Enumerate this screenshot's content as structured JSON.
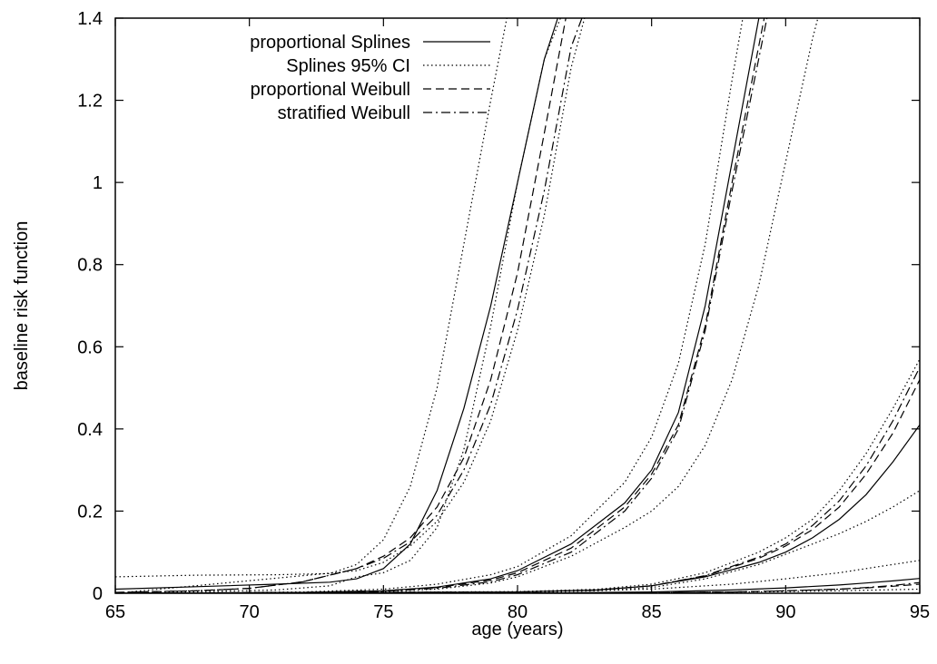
{
  "chart_data": {
    "type": "line",
    "title": "",
    "xlabel": "age (years)",
    "ylabel": "baseline risk function",
    "xlim": [
      65,
      95
    ],
    "ylim": [
      0,
      1.4
    ],
    "xticks": [
      "65",
      "70",
      "75",
      "80",
      "85",
      "90",
      "95"
    ],
    "yticks": [
      "0",
      "0.2",
      "0.4",
      "0.6",
      "0.8",
      "1",
      "1.2",
      "1.4"
    ],
    "grid": false,
    "legend_position": "top-left",
    "legend": [
      {
        "label": "proportional Splines",
        "style": "solid"
      },
      {
        "label": "Splines 95% CI",
        "style": "dotted"
      },
      {
        "label": "proportional Weibull",
        "style": "dashed"
      },
      {
        "label": "stratified Weibull",
        "style": "dashdot"
      }
    ],
    "series": [
      {
        "group": "A",
        "style": "solid",
        "points": [
          [
            65,
            0.01
          ],
          [
            68,
            0.016
          ],
          [
            71,
            0.022
          ],
          [
            73,
            0.027
          ],
          [
            74,
            0.035
          ],
          [
            75,
            0.06
          ],
          [
            76,
            0.12
          ],
          [
            77,
            0.25
          ],
          [
            78,
            0.45
          ],
          [
            79,
            0.7
          ],
          [
            80,
            1.0
          ],
          [
            81,
            1.3
          ],
          [
            81.5,
            1.4
          ]
        ]
      },
      {
        "group": "A",
        "style": "dotted",
        "points": [
          [
            65,
            0.04
          ],
          [
            68,
            0.044
          ],
          [
            71,
            0.045
          ],
          [
            73,
            0.048
          ],
          [
            74,
            0.07
          ],
          [
            75,
            0.13
          ],
          [
            76,
            0.26
          ],
          [
            77,
            0.5
          ],
          [
            78,
            0.85
          ],
          [
            79,
            1.2
          ],
          [
            79.6,
            1.4
          ]
        ]
      },
      {
        "group": "A",
        "style": "dotted",
        "points": [
          [
            65,
            0.0
          ],
          [
            68,
            0.004
          ],
          [
            71,
            0.008
          ],
          [
            73,
            0.018
          ],
          [
            74,
            0.04
          ],
          [
            75,
            0.05
          ],
          [
            76,
            0.08
          ],
          [
            77,
            0.16
          ],
          [
            78,
            0.35
          ],
          [
            79,
            0.65
          ],
          [
            80,
            1.0
          ],
          [
            81,
            1.3
          ],
          [
            81.6,
            1.4
          ]
        ]
      },
      {
        "group": "A",
        "style": "dashed",
        "points": [
          [
            65,
            0.002
          ],
          [
            68,
            0.006
          ],
          [
            70,
            0.012
          ],
          [
            72,
            0.028
          ],
          [
            74,
            0.06
          ],
          [
            75,
            0.09
          ],
          [
            76,
            0.135
          ],
          [
            77,
            0.21
          ],
          [
            78,
            0.33
          ],
          [
            79,
            0.52
          ],
          [
            80,
            0.78
          ],
          [
            81,
            1.12
          ],
          [
            81.8,
            1.4
          ]
        ]
      },
      {
        "group": "A",
        "style": "dashdot",
        "points": [
          [
            65,
            0.002
          ],
          [
            68,
            0.006
          ],
          [
            70,
            0.012
          ],
          [
            72,
            0.028
          ],
          [
            74,
            0.06
          ],
          [
            75,
            0.085
          ],
          [
            76,
            0.125
          ],
          [
            77,
            0.19
          ],
          [
            78,
            0.3
          ],
          [
            79,
            0.46
          ],
          [
            80,
            0.69
          ],
          [
            81,
            0.98
          ],
          [
            82,
            1.33
          ],
          [
            82.4,
            1.4
          ]
        ]
      },
      {
        "group": "A",
        "style": "dotted",
        "points": [
          [
            65,
            0.0
          ],
          [
            74,
            0.055
          ],
          [
            75,
            0.075
          ],
          [
            76,
            0.115
          ],
          [
            77,
            0.175
          ],
          [
            78,
            0.27
          ],
          [
            79,
            0.42
          ],
          [
            80,
            0.64
          ],
          [
            81,
            0.92
          ],
          [
            82,
            1.28
          ],
          [
            82.5,
            1.4
          ]
        ]
      },
      {
        "group": "B",
        "style": "solid",
        "points": [
          [
            65,
            0.0
          ],
          [
            72,
            0.002
          ],
          [
            75,
            0.006
          ],
          [
            77,
            0.015
          ],
          [
            79,
            0.035
          ],
          [
            80,
            0.055
          ],
          [
            82,
            0.12
          ],
          [
            84,
            0.22
          ],
          [
            85,
            0.3
          ],
          [
            86,
            0.44
          ],
          [
            87,
            0.7
          ],
          [
            88,
            1.05
          ],
          [
            89,
            1.4
          ]
        ]
      },
      {
        "group": "B",
        "style": "dotted",
        "points": [
          [
            65,
            0.0
          ],
          [
            72,
            0.003
          ],
          [
            75,
            0.01
          ],
          [
            77,
            0.022
          ],
          [
            79,
            0.045
          ],
          [
            80,
            0.065
          ],
          [
            82,
            0.14
          ],
          [
            84,
            0.27
          ],
          [
            85,
            0.38
          ],
          [
            86,
            0.56
          ],
          [
            87,
            0.85
          ],
          [
            88,
            1.25
          ],
          [
            88.4,
            1.4
          ]
        ]
      },
      {
        "group": "B",
        "style": "dotted",
        "points": [
          [
            65,
            0.0
          ],
          [
            72,
            0.001
          ],
          [
            75,
            0.004
          ],
          [
            77,
            0.01
          ],
          [
            79,
            0.025
          ],
          [
            80,
            0.04
          ],
          [
            82,
            0.09
          ],
          [
            84,
            0.16
          ],
          [
            85,
            0.2
          ],
          [
            86,
            0.26
          ],
          [
            87,
            0.36
          ],
          [
            88,
            0.52
          ],
          [
            89,
            0.75
          ],
          [
            90,
            1.05
          ],
          [
            91,
            1.35
          ],
          [
            91.2,
            1.4
          ]
        ]
      },
      {
        "group": "B",
        "style": "dashed",
        "points": [
          [
            65,
            0.0
          ],
          [
            72,
            0.002
          ],
          [
            75,
            0.006
          ],
          [
            77,
            0.014
          ],
          [
            79,
            0.032
          ],
          [
            80,
            0.05
          ],
          [
            82,
            0.11
          ],
          [
            84,
            0.21
          ],
          [
            85,
            0.29
          ],
          [
            86,
            0.41
          ],
          [
            87,
            0.65
          ],
          [
            88,
            1.0
          ],
          [
            89.2,
            1.4
          ]
        ]
      },
      {
        "group": "B",
        "style": "dashdot",
        "points": [
          [
            65,
            0.0
          ],
          [
            72,
            0.002
          ],
          [
            75,
            0.005
          ],
          [
            77,
            0.012
          ],
          [
            79,
            0.028
          ],
          [
            80,
            0.045
          ],
          [
            82,
            0.1
          ],
          [
            84,
            0.2
          ],
          [
            85,
            0.28
          ],
          [
            86,
            0.4
          ],
          [
            87,
            0.64
          ],
          [
            88,
            0.98
          ],
          [
            89.3,
            1.4
          ]
        ]
      },
      {
        "group": "C",
        "style": "solid",
        "points": [
          [
            65,
            0.0
          ],
          [
            80,
            0.003
          ],
          [
            83,
            0.008
          ],
          [
            85,
            0.018
          ],
          [
            87,
            0.04
          ],
          [
            89,
            0.075
          ],
          [
            90,
            0.1
          ],
          [
            91,
            0.135
          ],
          [
            92,
            0.18
          ],
          [
            93,
            0.24
          ],
          [
            94,
            0.32
          ],
          [
            95,
            0.41
          ]
        ]
      },
      {
        "group": "C",
        "style": "dotted",
        "points": [
          [
            65,
            0.0
          ],
          [
            80,
            0.004
          ],
          [
            83,
            0.01
          ],
          [
            85,
            0.022
          ],
          [
            87,
            0.05
          ],
          [
            89,
            0.1
          ],
          [
            90,
            0.135
          ],
          [
            91,
            0.18
          ],
          [
            92,
            0.25
          ],
          [
            93,
            0.34
          ],
          [
            94,
            0.45
          ],
          [
            95,
            0.57
          ]
        ]
      },
      {
        "group": "C",
        "style": "dotted",
        "points": [
          [
            65,
            0.0
          ],
          [
            80,
            0.002
          ],
          [
            83,
            0.006
          ],
          [
            85,
            0.014
          ],
          [
            87,
            0.035
          ],
          [
            89,
            0.07
          ],
          [
            90,
            0.095
          ],
          [
            91,
            0.12
          ],
          [
            92,
            0.145
          ],
          [
            93,
            0.175
          ],
          [
            94,
            0.21
          ],
          [
            95,
            0.25
          ]
        ]
      },
      {
        "group": "C",
        "style": "dashed",
        "points": [
          [
            65,
            0.0
          ],
          [
            80,
            0.003
          ],
          [
            83,
            0.008
          ],
          [
            85,
            0.018
          ],
          [
            87,
            0.042
          ],
          [
            89,
            0.085
          ],
          [
            90,
            0.115
          ],
          [
            91,
            0.155
          ],
          [
            92,
            0.21
          ],
          [
            93,
            0.29
          ],
          [
            94,
            0.39
          ],
          [
            95,
            0.52
          ]
        ]
      },
      {
        "group": "C",
        "style": "dashdot",
        "points": [
          [
            65,
            0.0
          ],
          [
            80,
            0.003
          ],
          [
            83,
            0.008
          ],
          [
            85,
            0.018
          ],
          [
            87,
            0.043
          ],
          [
            89,
            0.088
          ],
          [
            90,
            0.12
          ],
          [
            91,
            0.165
          ],
          [
            92,
            0.225
          ],
          [
            93,
            0.31
          ],
          [
            94,
            0.42
          ],
          [
            95,
            0.55
          ]
        ]
      },
      {
        "group": "D",
        "style": "solid",
        "points": [
          [
            65,
            0.0
          ],
          [
            80,
            0.0
          ],
          [
            85,
            0.003
          ],
          [
            88,
            0.008
          ],
          [
            90,
            0.013
          ],
          [
            92,
            0.02
          ],
          [
            93,
            0.025
          ],
          [
            94,
            0.03
          ],
          [
            95,
            0.036
          ]
        ]
      },
      {
        "group": "D",
        "style": "dotted",
        "points": [
          [
            65,
            0.0
          ],
          [
            80,
            0.001
          ],
          [
            85,
            0.01
          ],
          [
            88,
            0.022
          ],
          [
            90,
            0.035
          ],
          [
            92,
            0.05
          ],
          [
            93,
            0.06
          ],
          [
            94,
            0.07
          ],
          [
            95,
            0.08
          ]
        ]
      },
      {
        "group": "D",
        "style": "dotted",
        "points": [
          [
            65,
            0.0
          ],
          [
            85,
            0.001
          ],
          [
            90,
            0.004
          ],
          [
            92,
            0.006
          ],
          [
            95,
            0.01
          ]
        ]
      },
      {
        "group": "D",
        "style": "dashed",
        "points": [
          [
            65,
            0.0
          ],
          [
            85,
            0.001
          ],
          [
            88,
            0.003
          ],
          [
            90,
            0.006
          ],
          [
            92,
            0.01
          ],
          [
            93,
            0.013
          ],
          [
            94,
            0.017
          ],
          [
            95,
            0.022
          ]
        ]
      },
      {
        "group": "D",
        "style": "dashdot",
        "points": [
          [
            65,
            0.0
          ],
          [
            85,
            0.001
          ],
          [
            88,
            0.003
          ],
          [
            90,
            0.006
          ],
          [
            92,
            0.01
          ],
          [
            93,
            0.014
          ],
          [
            94,
            0.019
          ],
          [
            95,
            0.026
          ]
        ]
      }
    ]
  }
}
